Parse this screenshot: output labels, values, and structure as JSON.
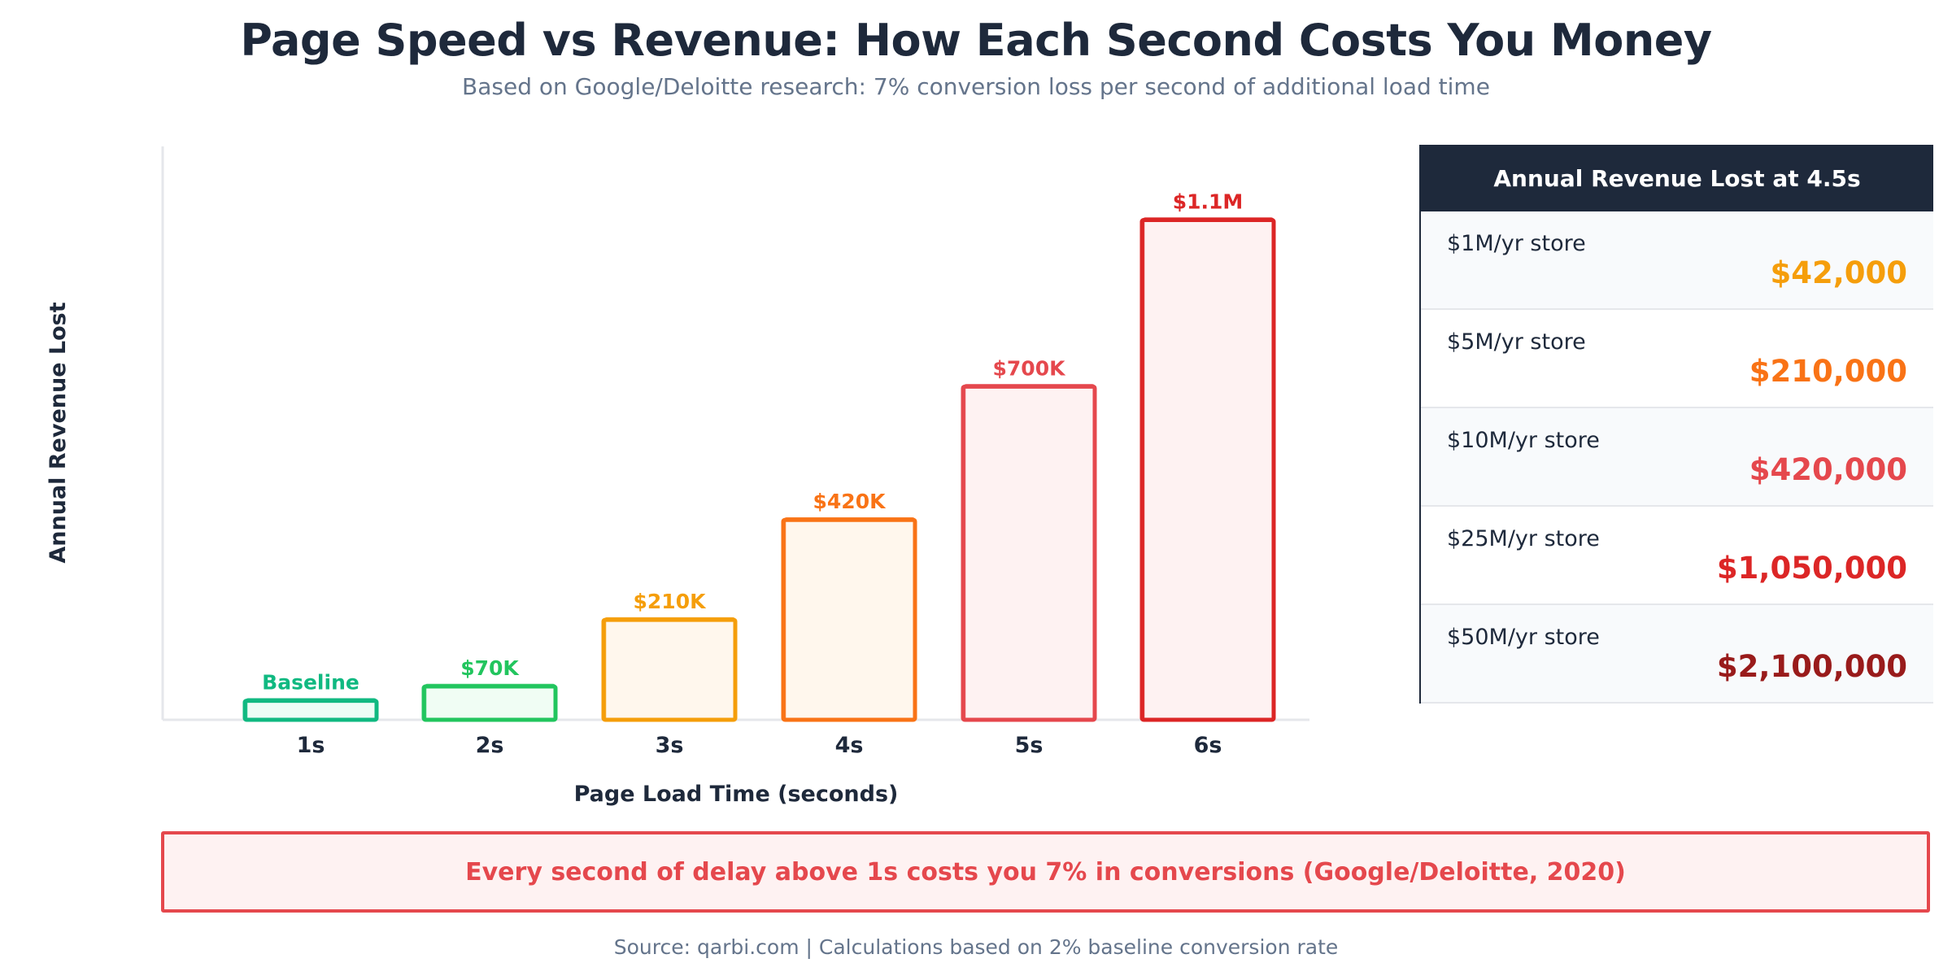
{
  "header": {
    "title": "Page Speed vs Revenue: How Each Second Costs You Money",
    "subtitle": "Based on Google/Deloitte research: 7% conversion loss per second of additional load time"
  },
  "chart_data": {
    "type": "bar",
    "title": "Page Speed vs Revenue: How Each Second Costs You Money",
    "xlabel": "Page Load Time (seconds)",
    "ylabel": "Annual Revenue Lost",
    "categories": [
      "1s",
      "2s",
      "3s",
      "4s",
      "5s",
      "6s"
    ],
    "values": [
      40000,
      70000,
      210000,
      420000,
      700000,
      1050000
    ],
    "value_labels": [
      "Baseline",
      "$70K",
      "$210K",
      "$420K",
      "$700K",
      "$1.1M"
    ],
    "colors": [
      "#10b981",
      "#22c55e",
      "#f59e0b",
      "#f97316",
      "#e5484d",
      "#dc2626"
    ],
    "fills": [
      "#ecfdf5",
      "#f0fdf4",
      "#fff7ed",
      "#fff7ed",
      "#fef2f2",
      "#fef2f2"
    ],
    "ylim": [
      0,
      1150000
    ],
    "grid": false,
    "legend": "none"
  },
  "panel": {
    "title": "Annual Revenue Lost at 4.5s",
    "rows": [
      {
        "label": "$1M/yr store",
        "value": "$42,000",
        "color": "#f59e0b"
      },
      {
        "label": "$5M/yr store",
        "value": "$210,000",
        "color": "#f97316"
      },
      {
        "label": "$10M/yr store",
        "value": "$420,000",
        "color": "#e5484d"
      },
      {
        "label": "$25M/yr store",
        "value": "$1,050,000",
        "color": "#dc2626"
      },
      {
        "label": "$50M/yr store",
        "value": "$2,100,000",
        "color": "#991b1b"
      }
    ]
  },
  "callout": {
    "text": "Every second of delay above 1s costs you 7% in conversions (Google/Deloitte, 2020)"
  },
  "footer": {
    "source": "Source: qarbi.com | Calculations based on 2% baseline conversion rate"
  }
}
